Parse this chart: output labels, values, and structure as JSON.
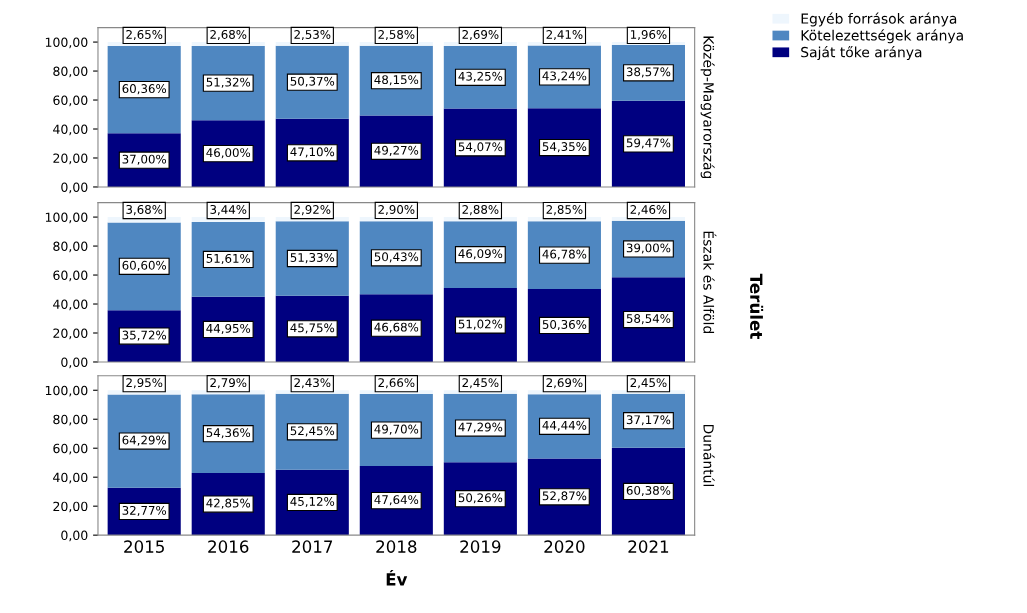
{
  "chart_data": [
    {
      "type": "bar",
      "stacked": true,
      "categories": [
        "2015",
        "2016",
        "2017",
        "2018",
        "2019",
        "2020",
        "2021"
      ],
      "y2label": "Közép-Magyarország",
      "annotations": [
        "Terület"
      ],
      "ylim": [
        0,
        110
      ],
      "yticks": [
        {
          "value": 0,
          "label": "0,00"
        },
        {
          "value": 20,
          "label": "20,00"
        },
        {
          "value": 40,
          "label": "40,00"
        },
        {
          "value": 60,
          "label": "60,00"
        },
        {
          "value": 80,
          "label": "80,00"
        },
        {
          "value": 100,
          "label": "100,00"
        }
      ],
      "tick_labels": "y",
      "legend": "right",
      "grid": false,
      "series": [
        {
          "name": "Saját tőke aránya",
          "color": "#000080",
          "values": [
            37.0,
            46.0,
            47.1,
            49.27,
            54.07,
            54.35,
            59.47
          ],
          "value_labels": [
            "37,00%",
            "46,00%",
            "47,10%",
            "49,27%",
            "54,07%",
            "54,35%",
            "59,47%"
          ]
        },
        {
          "name": "Kötelezettségek aránya",
          "color": "#4f87c1",
          "values": [
            60.36,
            51.32,
            50.37,
            48.15,
            43.25,
            43.24,
            38.57
          ],
          "value_labels": [
            "60,36%",
            "51,32%",
            "50,37%",
            "48,15%",
            "43,25%",
            "43,24%",
            "38,57%"
          ]
        },
        {
          "name": "Egyéb források aránya",
          "color": "#eef6fd",
          "values": [
            2.65,
            2.68,
            2.53,
            2.58,
            2.69,
            2.41,
            1.96
          ],
          "value_labels": [
            "2,65%",
            "2,68%",
            "2,53%",
            "2,58%",
            "2,69%",
            "2,41%",
            "1,96%"
          ]
        }
      ]
    },
    {
      "type": "bar",
      "stacked": true,
      "categories": [
        "2015",
        "2016",
        "2017",
        "2018",
        "2019",
        "2020",
        "2021"
      ],
      "y2label": "Észak és Alföld",
      "ylim": [
        0,
        110
      ],
      "yticks": [
        {
          "value": 0,
          "label": "0,00"
        },
        {
          "value": 20,
          "label": "20,00"
        },
        {
          "value": 40,
          "label": "40,00"
        },
        {
          "value": 60,
          "label": "60,00"
        },
        {
          "value": 80,
          "label": "80,00"
        },
        {
          "value": 100,
          "label": "100,00"
        }
      ],
      "tick_labels": "y",
      "grid": false,
      "series": [
        {
          "color": "#000080",
          "values": [
            35.72,
            44.95,
            45.75,
            46.68,
            51.02,
            50.36,
            58.54
          ],
          "value_labels": [
            "35,72%",
            "44,95%",
            "45,75%",
            "46,68%",
            "51,02%",
            "50,36%",
            "58,54%"
          ]
        },
        {
          "color": "#4f87c1",
          "values": [
            60.6,
            51.61,
            51.33,
            50.43,
            46.09,
            46.78,
            39.0
          ],
          "value_labels": [
            "60,60%",
            "51,61%",
            "51,33%",
            "50,43%",
            "46,09%",
            "46,78%",
            "39,00%"
          ]
        },
        {
          "color": "#eef6fd",
          "values": [
            3.68,
            3.44,
            2.92,
            2.9,
            2.88,
            2.85,
            2.46
          ],
          "value_labels": [
            "3,68%",
            "3,44%",
            "2,92%",
            "2,90%",
            "2,88%",
            "2,85%",
            "2,46%"
          ]
        }
      ]
    },
    {
      "type": "bar",
      "stacked": true,
      "categories": [
        "2015",
        "2016",
        "2017",
        "2018",
        "2019",
        "2020",
        "2021"
      ],
      "y2label": "Dunántúl",
      "xlabel": "Év",
      "ylim": [
        0,
        110
      ],
      "yticks": [
        {
          "value": 0,
          "label": "0,00"
        },
        {
          "value": 20,
          "label": "20,00"
        },
        {
          "value": 40,
          "label": "40,00"
        },
        {
          "value": 60,
          "label": "60,00"
        },
        {
          "value": 80,
          "label": "80,00"
        },
        {
          "value": 100,
          "label": "100,00"
        }
      ],
      "grid": false,
      "series": [
        {
          "color": "#000080",
          "values": [
            32.77,
            42.85,
            45.12,
            47.64,
            50.26,
            52.87,
            60.38
          ],
          "value_labels": [
            "32,77%",
            "42,85%",
            "45,12%",
            "47,64%",
            "50,26%",
            "52,87%",
            "60,38%"
          ]
        },
        {
          "color": "#4f87c1",
          "values": [
            64.29,
            54.36,
            52.45,
            49.7,
            47.29,
            44.44,
            37.17
          ],
          "value_labels": [
            "64,29%",
            "54,36%",
            "52,45%",
            "49,70%",
            "47,29%",
            "44,44%",
            "37,17%"
          ]
        },
        {
          "color": "#eef6fd",
          "values": [
            2.95,
            2.79,
            2.43,
            2.66,
            2.45,
            2.69,
            2.45
          ],
          "value_labels": [
            "2,95%",
            "2,79%",
            "2,43%",
            "2,66%",
            "2,45%",
            "2,69%",
            "2,45%"
          ]
        }
      ]
    }
  ]
}
